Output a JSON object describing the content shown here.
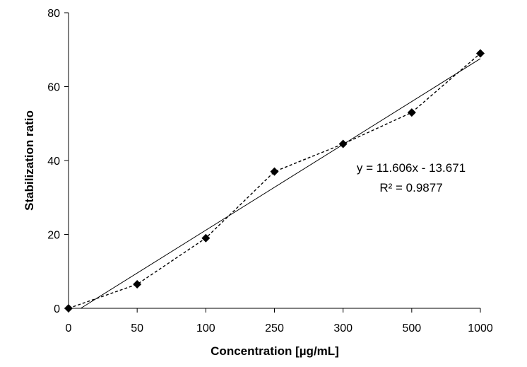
{
  "chart_data": {
    "type": "scatter",
    "categories": [
      "0",
      "50",
      "100",
      "250",
      "300",
      "500",
      "1000"
    ],
    "series": [
      {
        "values": [
          0,
          6.5,
          19,
          37,
          44.5,
          53,
          69
        ],
        "marker": "diamond",
        "line_style": "dashed",
        "color": "#000000"
      }
    ],
    "trendline": {
      "type": "linear",
      "slope": 11.606,
      "intercept": -13.671,
      "color": "#000000"
    },
    "annotations": {
      "equation": "y = 11.606x - 13.671",
      "r_squared": "R² = 0.9877"
    },
    "xlabel": "Concentration [µg/mL]",
    "ylabel": "Stabilization ratio",
    "yticks": [
      0,
      20,
      40,
      60,
      80
    ],
    "ylim": [
      0,
      80
    ],
    "grid": false,
    "legend": "none"
  }
}
